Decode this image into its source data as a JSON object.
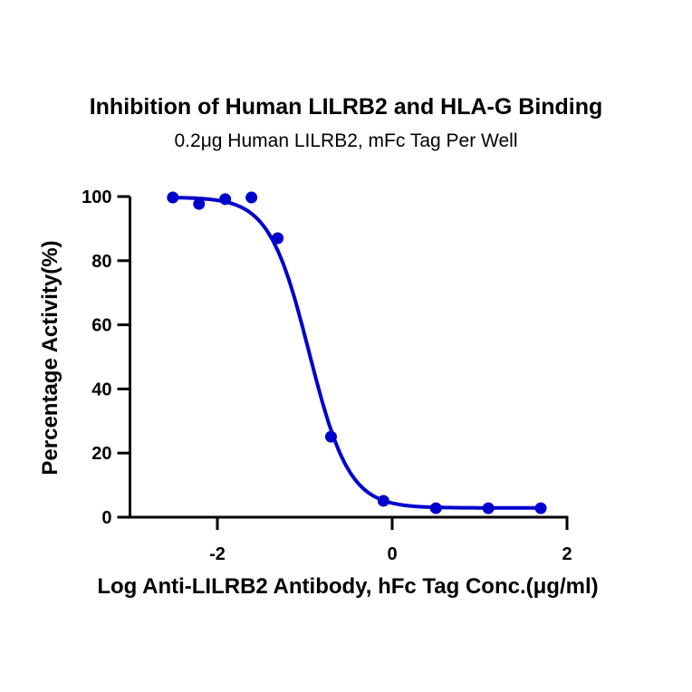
{
  "chart_data": {
    "type": "scatter",
    "title": "Inhibition of Human LILRB2 and HLA-G Binding",
    "subtitle": "0.2μg Human LILRB2, mFc Tag Per Well",
    "xlabel": "Log Anti-LILRB2 Antibody, hFc Tag Conc.(μg/ml)",
    "ylabel": "Percentage Activity(%)",
    "xlim": [
      -3.0,
      2.0
    ],
    "ylim": [
      0,
      100
    ],
    "x_ticks": [
      -2,
      0,
      2
    ],
    "y_ticks": [
      0,
      20,
      40,
      60,
      80,
      100
    ],
    "grid": false,
    "legend": null,
    "series": [
      {
        "name": "data",
        "color": "#0000cc",
        "x": [
          -2.51,
          -2.21,
          -1.91,
          -1.61,
          -1.31,
          -0.7,
          -0.1,
          0.5,
          1.1,
          1.7
        ],
        "y": [
          99.7,
          97.7,
          99.2,
          99.7,
          87.0,
          25.1,
          5.1,
          2.8,
          2.8,
          2.8
        ]
      }
    ],
    "fit": {
      "type": "4PL sigmoid",
      "top": 99.8,
      "bottom": 2.9,
      "logIC50": -0.95,
      "hill_slope": -1.9,
      "color": "#0000cc"
    }
  }
}
